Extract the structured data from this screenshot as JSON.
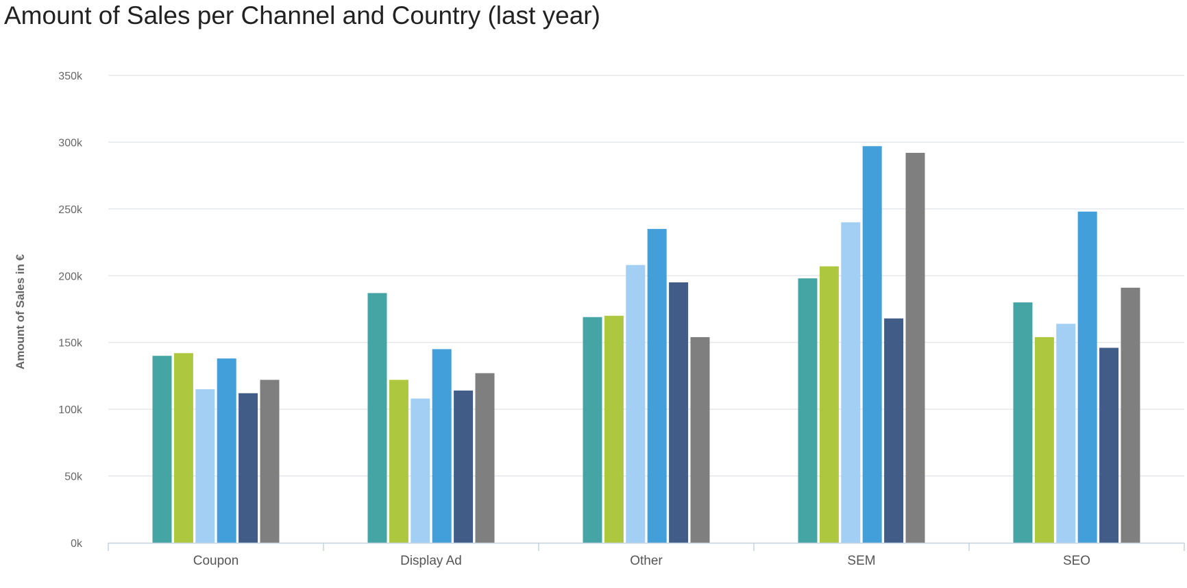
{
  "chart_data": {
    "type": "bar",
    "title": "Amount of Sales per Channel and Country (last year)",
    "xlabel": "",
    "ylabel": "Amount of Sales in €",
    "ylim": [
      0,
      350000
    ],
    "yticks": [
      0,
      50000,
      100000,
      150000,
      200000,
      250000,
      300000,
      350000
    ],
    "ytick_labels": [
      "0k",
      "50k",
      "100k",
      "150k",
      "200k",
      "250k",
      "300k",
      "350k"
    ],
    "categories": [
      "Coupon",
      "Display Ad",
      "Other",
      "SEM",
      "SEO"
    ],
    "grid": true,
    "legend": "none",
    "series": [
      {
        "color": "#45a5a5",
        "values": [
          140000,
          187000,
          169000,
          198000,
          180000
        ]
      },
      {
        "color": "#adc73e",
        "values": [
          142000,
          122000,
          170000,
          207000,
          154000
        ]
      },
      {
        "color": "#a3cff5",
        "values": [
          115000,
          108000,
          208000,
          240000,
          164000
        ]
      },
      {
        "color": "#429fda",
        "values": [
          138000,
          145000,
          235000,
          297000,
          248000
        ]
      },
      {
        "color": "#415c87",
        "values": [
          112000,
          114000,
          195000,
          168000,
          146000
        ]
      },
      {
        "color": "#7f7f7f",
        "values": [
          122000,
          127000,
          154000,
          292000,
          191000
        ]
      }
    ]
  }
}
